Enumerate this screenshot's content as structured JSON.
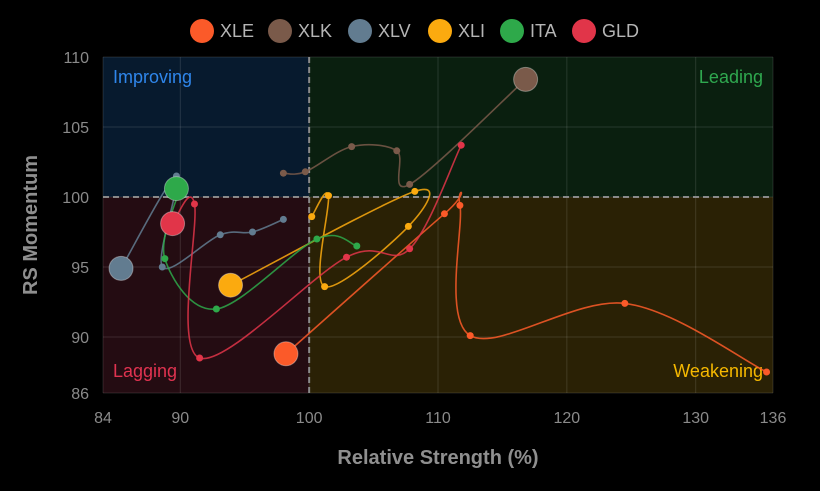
{
  "chart_data": {
    "type": "scatter",
    "title": "",
    "xlabel": "Relative Strength (%)",
    "ylabel": "RS Momentum",
    "xlim": [
      84,
      136
    ],
    "ylim": [
      86,
      110
    ],
    "xticks": [
      84,
      90,
      100,
      110,
      120,
      130,
      136
    ],
    "yticks": [
      86,
      90,
      95,
      100,
      105,
      110
    ],
    "reference_x": 100,
    "reference_y": 100,
    "grid": true,
    "legend_position": "top-center",
    "quadrants": [
      {
        "label": "Improving",
        "color": "#2f86eb",
        "bg": "#071a2e"
      },
      {
        "label": "Leading",
        "color": "#2fa84f",
        "bg": "#0a1f0f"
      },
      {
        "label": "Lagging",
        "color": "#e03350",
        "bg": "#240c12"
      },
      {
        "label": "Weakening",
        "color": "#f5b800",
        "bg": "#2a2105"
      }
    ],
    "series": [
      {
        "name": "XLE",
        "color": "#fb5a29",
        "points": [
          [
            135.5,
            87.5
          ],
          [
            124.5,
            92.4
          ],
          [
            112.5,
            90.1
          ],
          [
            111.7,
            99.4
          ],
          [
            110.5,
            98.8
          ],
          [
            98.2,
            88.8
          ]
        ]
      },
      {
        "name": "XLK",
        "color": "#7a5a4a",
        "points": [
          [
            98.0,
            101.7
          ],
          [
            99.7,
            101.8
          ],
          [
            103.3,
            103.6
          ],
          [
            106.8,
            103.3
          ],
          [
            107.8,
            100.9
          ],
          [
            116.8,
            108.4
          ]
        ]
      },
      {
        "name": "XLV",
        "color": "#627c90",
        "points": [
          [
            98.0,
            98.4
          ],
          [
            95.6,
            97.5
          ],
          [
            93.1,
            97.3
          ],
          [
            88.6,
            95.0
          ],
          [
            89.7,
            101.5
          ],
          [
            85.4,
            94.9
          ]
        ]
      },
      {
        "name": "XLI",
        "color": "#fbaa0f",
        "points": [
          [
            100.2,
            98.6
          ],
          [
            101.5,
            100.1
          ],
          [
            101.2,
            93.6
          ],
          [
            107.7,
            97.9
          ],
          [
            108.2,
            100.4
          ],
          [
            93.9,
            93.7
          ]
        ]
      },
      {
        "name": "ITA",
        "color": "#2ea94a",
        "points": [
          [
            103.7,
            96.5
          ],
          [
            100.6,
            97.0
          ],
          [
            92.8,
            92.0
          ],
          [
            88.8,
            95.6
          ],
          [
            89.9,
            100.5
          ],
          [
            89.7,
            100.6
          ]
        ]
      },
      {
        "name": "GLD",
        "color": "#e13549",
        "points": [
          [
            111.8,
            103.7
          ],
          [
            107.8,
            96.3
          ],
          [
            102.9,
            95.7
          ],
          [
            91.5,
            88.5
          ],
          [
            91.1,
            99.5
          ],
          [
            89.4,
            98.1
          ]
        ]
      }
    ]
  }
}
